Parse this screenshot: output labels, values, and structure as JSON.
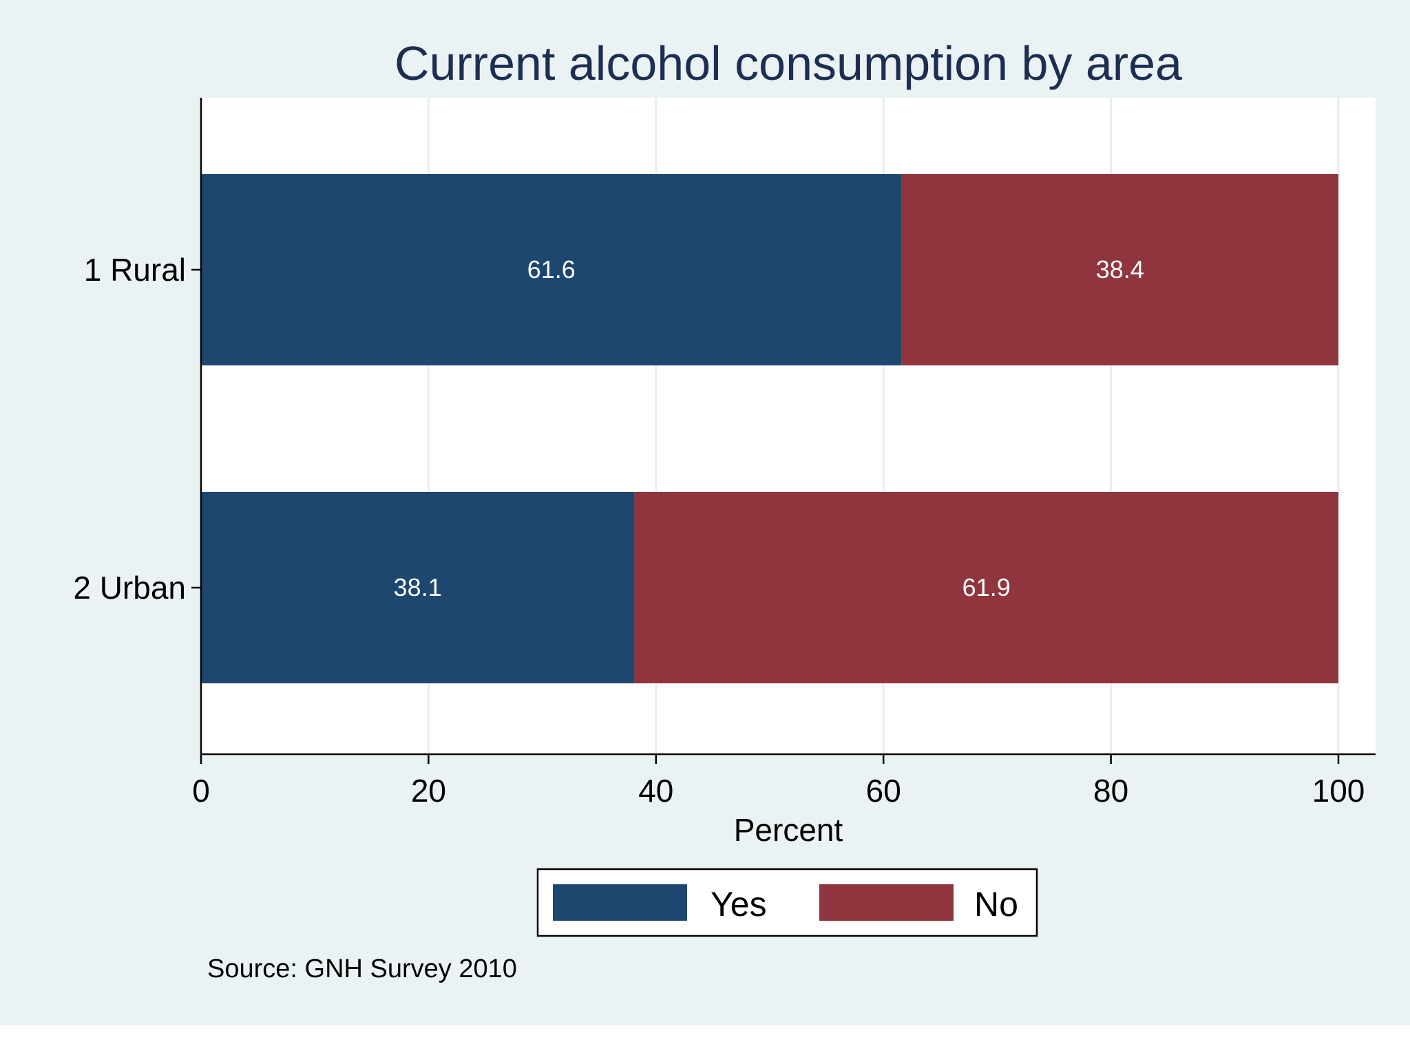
{
  "colors": {
    "outer_background": "#eaf2f3",
    "plot_background": "#ffffff",
    "gridline": "#e6eef1",
    "axis": "#000000",
    "title": "#1e2d52"
  },
  "chart_data": {
    "type": "bar",
    "orientation": "horizontal",
    "stacked": true,
    "title": "Current alcohol consumption by area",
    "xlabel": "Percent",
    "ylabel": "",
    "xlim": [
      0,
      100
    ],
    "xticks": [
      "0",
      "20",
      "40",
      "60",
      "80",
      "100"
    ],
    "grid": true,
    "categories": [
      "1 Rural",
      "2 Urban"
    ],
    "series": [
      {
        "name": "Yes",
        "color": "#1e4770",
        "values": [
          61.6,
          38.1
        ],
        "labels": [
          "61.6",
          "38.1"
        ]
      },
      {
        "name": "No",
        "color": "#90353d",
        "values": [
          38.4,
          61.9
        ],
        "labels": [
          "38.4",
          "61.9"
        ]
      }
    ],
    "legend": {
      "position": "bottom",
      "entries": [
        "Yes",
        "No"
      ]
    },
    "note": "Source: GNH Survey 2010"
  }
}
